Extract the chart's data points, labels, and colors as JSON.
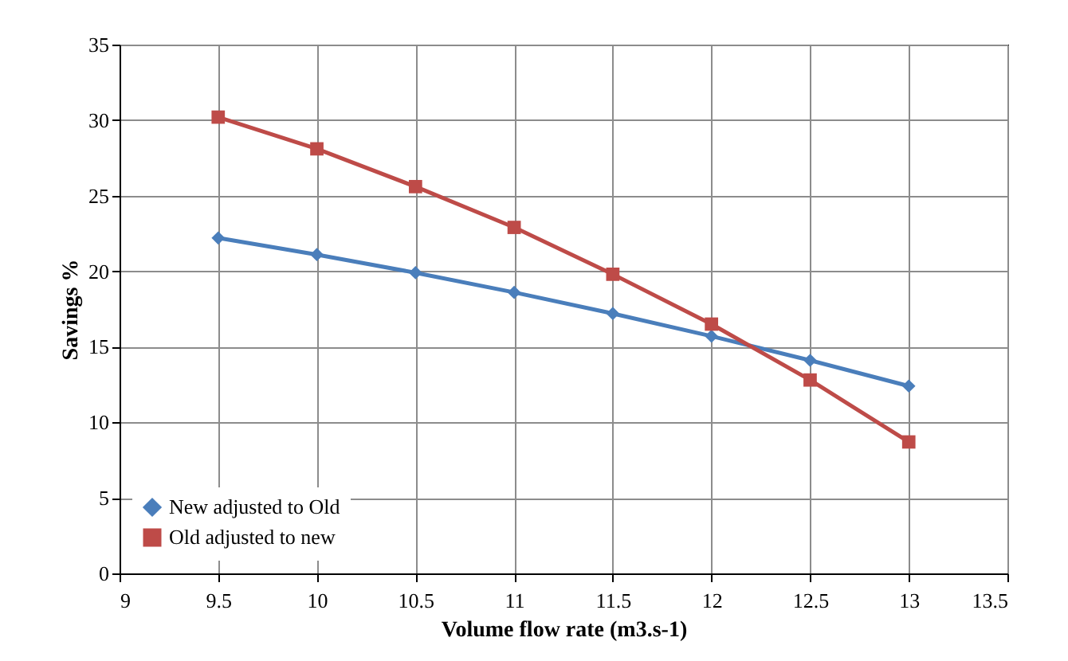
{
  "chart_data": {
    "type": "line",
    "xlabel": "Volume flow rate (m3.s-1)",
    "ylabel": "Savings %",
    "x": [
      9.5,
      10,
      10.5,
      11,
      11.5,
      12,
      12.5,
      13
    ],
    "series": [
      {
        "name": "New adjusted to Old",
        "color": "#4a7ebb",
        "marker": "diamond",
        "values": [
          22.2,
          21.1,
          19.9,
          18.6,
          17.2,
          15.7,
          14.1,
          12.4
        ]
      },
      {
        "name": "Old adjusted to new",
        "color": "#be4b48",
        "marker": "square",
        "values": [
          30.2,
          28.1,
          25.6,
          22.9,
          19.8,
          16.5,
          12.8,
          8.7
        ]
      }
    ],
    "xlim": [
      9,
      13.5
    ],
    "xticks": [
      9,
      9.5,
      10,
      10.5,
      11,
      11.5,
      12,
      12.5,
      13,
      13.5
    ],
    "ylim": [
      0,
      35
    ],
    "yticks": [
      0,
      5,
      10,
      15,
      20,
      25,
      30,
      35
    ],
    "grid": true,
    "legend": "bottom left"
  }
}
